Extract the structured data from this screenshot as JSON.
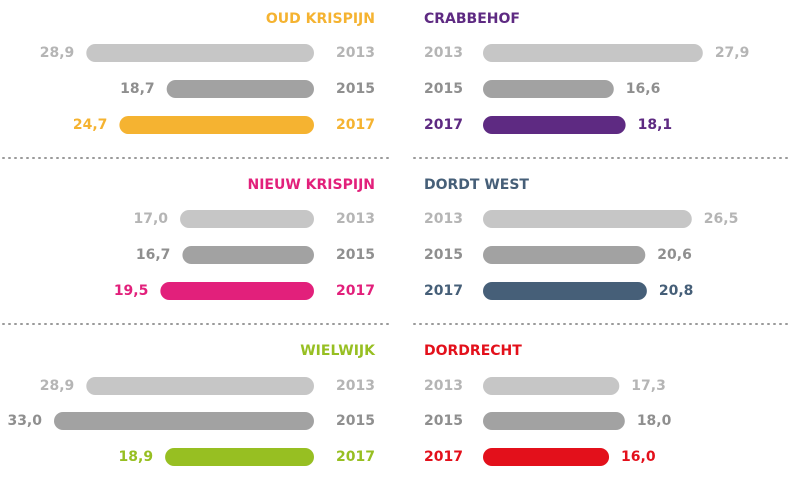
{
  "chart_data": [
    {
      "type": "bar",
      "title": "OUD KRISPIJN",
      "categories": [
        "2013",
        "2015",
        "2017"
      ],
      "values": [
        28.9,
        18.7,
        24.7
      ],
      "value_labels": [
        "28,9",
        "18,7",
        "24,7"
      ],
      "colors": [
        "#c6c6c6",
        "#a2a2a2",
        "#f5b331"
      ]
    },
    {
      "type": "bar",
      "title": "CRABBEHOF",
      "categories": [
        "2013",
        "2015",
        "2017"
      ],
      "values": [
        27.9,
        16.6,
        18.1
      ],
      "value_labels": [
        "27,9",
        "16,6",
        "18,1"
      ],
      "colors": [
        "#c6c6c6",
        "#a2a2a2",
        "#5e2a82"
      ]
    },
    {
      "type": "bar",
      "title": "NIEUW KRISPIJN",
      "categories": [
        "2013",
        "2015",
        "2017"
      ],
      "values": [
        17.0,
        16.7,
        19.5
      ],
      "value_labels": [
        "17,0",
        "16,7",
        "19,5"
      ],
      "colors": [
        "#c6c6c6",
        "#a2a2a2",
        "#e2207b"
      ]
    },
    {
      "type": "bar",
      "title": "DORDT WEST",
      "categories": [
        "2013",
        "2015",
        "2017"
      ],
      "values": [
        26.5,
        20.6,
        20.8
      ],
      "value_labels": [
        "26,5",
        "20,6",
        "20,8"
      ],
      "colors": [
        "#c6c6c6",
        "#a2a2a2",
        "#465f78"
      ]
    },
    {
      "type": "bar",
      "title": "WIELWIJK",
      "categories": [
        "2013",
        "2015",
        "2017"
      ],
      "values": [
        28.9,
        33.0,
        18.9
      ],
      "value_labels": [
        "28,9",
        "33,0",
        "18,9"
      ],
      "colors": [
        "#c6c6c6",
        "#a2a2a2",
        "#97bf22"
      ]
    },
    {
      "type": "bar",
      "title": "DORDRECHT",
      "categories": [
        "2013",
        "2015",
        "2017"
      ],
      "values": [
        17.3,
        18.0,
        16.0
      ],
      "value_labels": [
        "17,3",
        "18,0",
        "16,0"
      ],
      "colors": [
        "#c6c6c6",
        "#a2a2a2",
        "#e3101b"
      ]
    }
  ]
}
